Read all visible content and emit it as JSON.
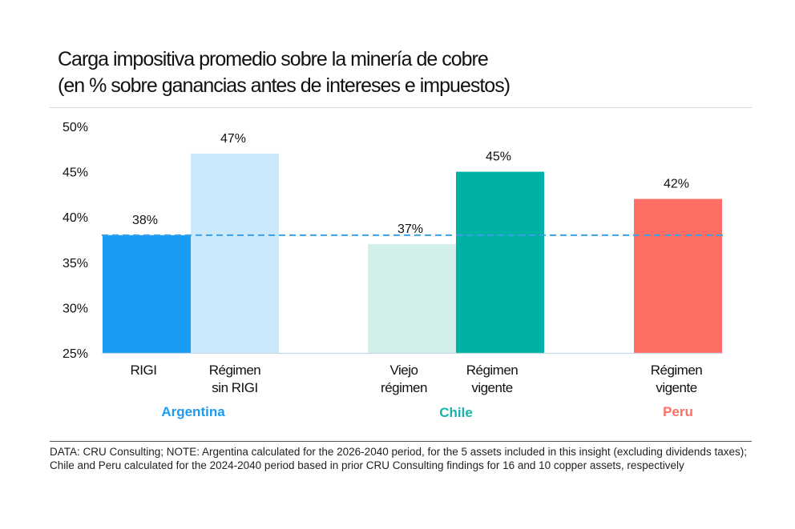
{
  "title": {
    "line1": "Carga impositiva promedio sobre la minería de cobre",
    "line2": "(en % sobre ganancias antes de intereses e impuestos)"
  },
  "chart_data": {
    "type": "bar",
    "ylim": [
      25,
      50
    ],
    "yticks": [
      25,
      30,
      35,
      40,
      45,
      50
    ],
    "ytick_labels": [
      "25%",
      "30%",
      "35%",
      "40%",
      "45%",
      "50%"
    ],
    "reference_line": {
      "value": 38,
      "style": "dashed",
      "color": "#3aa0e8"
    },
    "bars": [
      {
        "label": [
          "RIGI"
        ],
        "value": 38,
        "value_label": "38%",
        "color": "#1a9cf4"
      },
      {
        "label": [
          "Régimen",
          "sin RIGI"
        ],
        "value": 47,
        "value_label": "47%",
        "color": "#cbe9fb"
      },
      {
        "label": [
          "Viejo",
          "régimen"
        ],
        "value": 37,
        "value_label": "37%",
        "color": "#d3efec"
      },
      {
        "label": [
          "Régimen",
          "vigente"
        ],
        "value": 45,
        "value_label": "45%",
        "color": "#00b2a5"
      },
      {
        "label": [
          "Régimen",
          "vigente"
        ],
        "value": 42,
        "value_label": "42%",
        "color": "#ff6e65"
      }
    ],
    "groups": [
      {
        "name": "Argentina",
        "color": "#1a9cf4"
      },
      {
        "name": "Chile",
        "color": "#14b5a8"
      },
      {
        "name": "Peru",
        "color": "#ff6e65"
      }
    ],
    "grid": false
  },
  "footnote": "DATA: CRU Consulting; NOTE: Argentina calculated for the 2026-2040 period, for the 5 assets included in this insight (excluding dividends taxes); Chile and Peru calculated for the 2024-2040 period based in prior CRU Consulting findings for 16 and 10 copper assets, respectively"
}
